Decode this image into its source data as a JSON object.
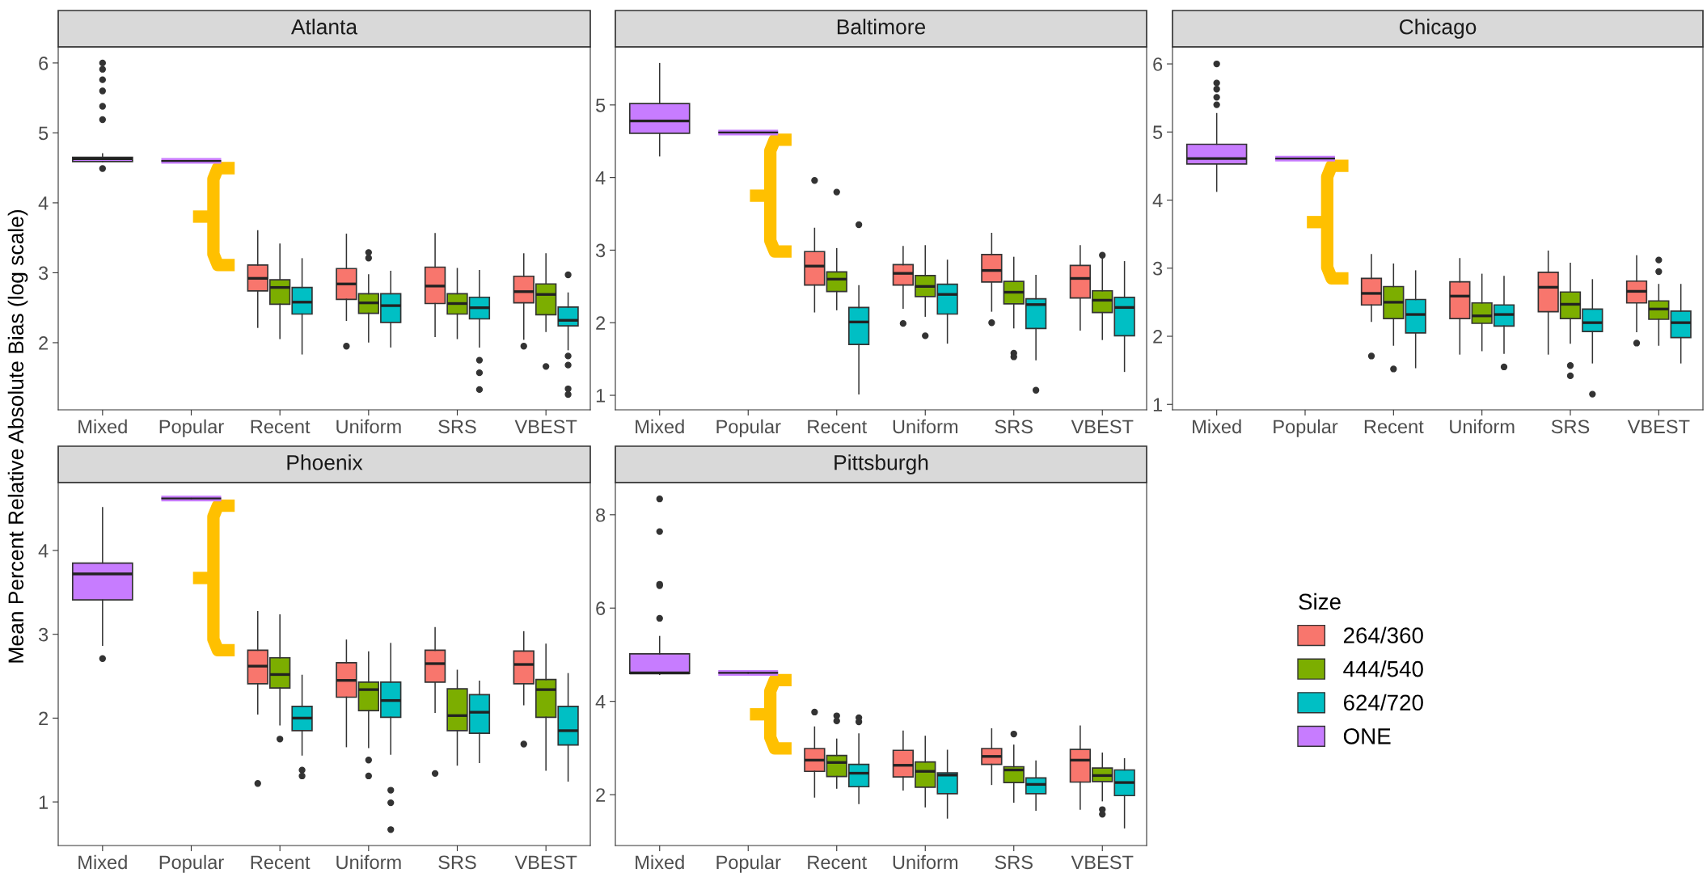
{
  "chart_data": [
    {
      "type": "box",
      "title": "Atlanta",
      "ylabel": "Mean Percent Relative Absolute Bias (log scale)",
      "legend": "right",
      "legend_title": "Size",
      "categories": [
        "Mixed",
        "Popular",
        "Recent",
        "Uniform",
        "SRS",
        "VBEST"
      ],
      "ylim": [
        1.04,
        6.23
      ],
      "yticks": [
        2,
        3,
        4,
        5,
        6
      ],
      "series": [
        {
          "name": "264/360",
          "color": "#F8766D",
          "boxes": [
            null,
            null,
            {
              "low": 2.22,
              "q1": 2.74,
              "median": 2.92,
              "q3": 3.11,
              "high": 3.6
            },
            {
              "low": 2.32,
              "q1": 2.62,
              "median": 2.84,
              "q3": 3.06,
              "high": 3.55,
              "outliers": [
                1.95
              ]
            },
            {
              "low": 2.09,
              "q1": 2.56,
              "median": 2.81,
              "q3": 3.08,
              "high": 3.56
            },
            {
              "low": 2.05,
              "q1": 2.57,
              "median": 2.73,
              "q3": 2.95,
              "high": 3.27,
              "outliers": [
                1.95
              ]
            }
          ]
        },
        {
          "name": "444/540",
          "color": "#7CAE00",
          "boxes": [
            null,
            null,
            {
              "low": 2.06,
              "q1": 2.55,
              "median": 2.79,
              "q3": 2.9,
              "high": 3.41
            },
            {
              "low": 2.01,
              "q1": 2.42,
              "median": 2.57,
              "q3": 2.7,
              "high": 2.97,
              "outliers": [
                3.21,
                3.29
              ]
            },
            {
              "low": 2.06,
              "q1": 2.41,
              "median": 2.56,
              "q3": 2.7,
              "high": 3.06
            },
            {
              "low": 2.16,
              "q1": 2.4,
              "median": 2.69,
              "q3": 2.84,
              "high": 3.27,
              "outliers": [
                1.66
              ]
            }
          ]
        },
        {
          "name": "624/720",
          "color": "#00BFC4",
          "boxes": [
            null,
            null,
            {
              "low": 1.84,
              "q1": 2.41,
              "median": 2.58,
              "q3": 2.79,
              "high": 3.2
            },
            {
              "low": 1.94,
              "q1": 2.29,
              "median": 2.53,
              "q3": 2.7,
              "high": 3.02
            },
            {
              "low": 1.94,
              "q1": 2.34,
              "median": 2.5,
              "q3": 2.65,
              "high": 3.03,
              "outliers": [
                1.75,
                1.57,
                1.33
              ]
            },
            {
              "low": 1.9,
              "q1": 2.24,
              "median": 2.32,
              "q3": 2.51,
              "high": 2.71,
              "outliers": [
                2.97,
                1.81,
                1.68,
                1.34,
                1.26
              ]
            }
          ]
        },
        {
          "name": "ONE",
          "color": "#C77CFF",
          "boxes": [
            {
              "low": 4.59,
              "q1": 4.59,
              "median": 4.63,
              "q3": 4.65,
              "high": 4.7,
              "outliers": [
                6.0,
                5.91,
                5.76,
                5.6,
                5.38,
                5.19,
                4.49
              ]
            },
            {
              "low": 4.6,
              "q1": 4.6,
              "median": 4.6,
              "q3": 4.6,
              "high": 4.6
            },
            null,
            null,
            null,
            null
          ]
        }
      ]
    },
    {
      "type": "box",
      "title": "Baltimore",
      "categories": [
        "Mixed",
        "Popular",
        "Recent",
        "Uniform",
        "SRS",
        "VBEST"
      ],
      "ylim": [
        0.8,
        5.8
      ],
      "yticks": [
        1,
        2,
        3,
        4,
        5
      ],
      "series": [
        {
          "color": "#F8766D",
          "boxes": [
            null,
            null,
            {
              "low": 2.15,
              "q1": 2.52,
              "median": 2.78,
              "q3": 2.98,
              "high": 3.3,
              "outliers": [
                3.96
              ]
            },
            {
              "low": 2.2,
              "q1": 2.52,
              "median": 2.68,
              "q3": 2.8,
              "high": 3.05,
              "outliers": [
                1.99
              ]
            },
            {
              "low": 2.16,
              "q1": 2.56,
              "median": 2.72,
              "q3": 2.94,
              "high": 3.23,
              "outliers": [
                2.0
              ]
            },
            {
              "low": 1.9,
              "q1": 2.34,
              "median": 2.61,
              "q3": 2.79,
              "high": 3.06
            }
          ]
        },
        {
          "color": "#7CAE00",
          "boxes": [
            null,
            null,
            {
              "low": 2.18,
              "q1": 2.43,
              "median": 2.6,
              "q3": 2.7,
              "high": 3.02,
              "outliers": [
                3.8
              ]
            },
            {
              "low": 2.09,
              "q1": 2.36,
              "median": 2.5,
              "q3": 2.65,
              "high": 3.06,
              "outliers": [
                1.82
              ]
            },
            {
              "low": 1.93,
              "q1": 2.26,
              "median": 2.42,
              "q3": 2.57,
              "high": 2.9,
              "outliers": [
                1.58,
                1.53
              ]
            },
            {
              "low": 1.77,
              "q1": 2.14,
              "median": 2.31,
              "q3": 2.44,
              "high": 2.9,
              "outliers": [
                2.93
              ]
            }
          ]
        },
        {
          "color": "#00BFC4",
          "boxes": [
            null,
            null,
            {
              "low": 1.02,
              "q1": 1.7,
              "median": 2.01,
              "q3": 2.21,
              "high": 2.51,
              "outliers": [
                3.35
              ]
            },
            {
              "low": 1.72,
              "q1": 2.12,
              "median": 2.39,
              "q3": 2.53,
              "high": 2.86
            },
            {
              "low": 1.49,
              "q1": 1.92,
              "median": 2.25,
              "q3": 2.33,
              "high": 2.65,
              "outliers": [
                1.07
              ]
            },
            {
              "low": 1.33,
              "q1": 1.82,
              "median": 2.21,
              "q3": 2.35,
              "high": 2.84
            }
          ]
        },
        {
          "color": "#C77CFF",
          "boxes": [
            {
              "low": 4.3,
              "q1": 4.61,
              "median": 4.78,
              "q3": 5.02,
              "high": 5.57
            },
            {
              "low": 4.62,
              "q1": 4.62,
              "median": 4.62,
              "q3": 4.62,
              "high": 4.62
            },
            null,
            null,
            null,
            null
          ]
        }
      ]
    },
    {
      "type": "box",
      "title": "Chicago",
      "categories": [
        "Mixed",
        "Popular",
        "Recent",
        "Uniform",
        "SRS",
        "VBEST"
      ],
      "ylim": [
        0.92,
        6.25
      ],
      "yticks": [
        1,
        2,
        3,
        4,
        5,
        6
      ],
      "series": [
        {
          "color": "#F8766D",
          "boxes": [
            null,
            null,
            {
              "low": 2.22,
              "q1": 2.46,
              "median": 2.63,
              "q3": 2.85,
              "high": 3.2,
              "outliers": [
                1.71
              ]
            },
            {
              "low": 1.74,
              "q1": 2.26,
              "median": 2.59,
              "q3": 2.8,
              "high": 3.14
            },
            {
              "low": 1.74,
              "q1": 2.36,
              "median": 2.72,
              "q3": 2.94,
              "high": 3.25
            },
            {
              "low": 2.07,
              "q1": 2.49,
              "median": 2.66,
              "q3": 2.81,
              "high": 3.18,
              "outliers": [
                1.9
              ]
            }
          ]
        },
        {
          "color": "#7CAE00",
          "boxes": [
            null,
            null,
            {
              "low": 1.87,
              "q1": 2.26,
              "median": 2.5,
              "q3": 2.73,
              "high": 3.06,
              "outliers": [
                1.52
              ]
            },
            {
              "low": 1.79,
              "q1": 2.19,
              "median": 2.3,
              "q3": 2.49,
              "high": 2.91
            },
            {
              "low": 1.9,
              "q1": 2.26,
              "median": 2.47,
              "q3": 2.65,
              "high": 3.07,
              "outliers": [
                1.57,
                1.42
              ]
            },
            {
              "low": 1.87,
              "q1": 2.25,
              "median": 2.4,
              "q3": 2.52,
              "high": 2.76,
              "outliers": [
                3.12,
                2.95
              ]
            }
          ]
        },
        {
          "color": "#00BFC4",
          "boxes": [
            null,
            null,
            {
              "low": 1.54,
              "q1": 2.05,
              "median": 2.32,
              "q3": 2.54,
              "high": 2.96
            },
            {
              "low": 1.75,
              "q1": 2.15,
              "median": 2.32,
              "q3": 2.46,
              "high": 2.88,
              "outliers": [
                1.55
              ]
            },
            {
              "low": 1.61,
              "q1": 2.07,
              "median": 2.2,
              "q3": 2.4,
              "high": 2.83,
              "outliers": [
                1.15
              ]
            },
            {
              "low": 1.61,
              "q1": 1.98,
              "median": 2.2,
              "q3": 2.37,
              "high": 2.76
            }
          ]
        },
        {
          "color": "#C77CFF",
          "boxes": [
            {
              "low": 4.13,
              "q1": 4.53,
              "median": 4.61,
              "q3": 4.82,
              "high": 5.27,
              "outliers": [
                6.0,
                5.72,
                5.63,
                5.51,
                5.4
              ]
            },
            {
              "low": 4.61,
              "q1": 4.61,
              "median": 4.61,
              "q3": 4.61,
              "high": 4.61
            },
            null,
            null,
            null,
            null
          ]
        }
      ]
    },
    {
      "type": "box",
      "title": "Phoenix",
      "categories": [
        "Mixed",
        "Popular",
        "Recent",
        "Uniform",
        "SRS",
        "VBEST"
      ],
      "ylim": [
        0.48,
        4.81
      ],
      "yticks": [
        1,
        2,
        3,
        4
      ],
      "series": [
        {
          "color": "#F8766D",
          "boxes": [
            null,
            null,
            {
              "low": 2.05,
              "q1": 2.41,
              "median": 2.62,
              "q3": 2.81,
              "high": 3.27,
              "outliers": [
                1.22
              ]
            },
            {
              "low": 1.66,
              "q1": 2.25,
              "median": 2.45,
              "q3": 2.66,
              "high": 2.93
            },
            {
              "low": 2.07,
              "q1": 2.43,
              "median": 2.65,
              "q3": 2.81,
              "high": 3.08,
              "outliers": [
                1.34
              ]
            },
            {
              "low": 2.16,
              "q1": 2.41,
              "median": 2.64,
              "q3": 2.8,
              "high": 3.03,
              "outliers": [
                1.69
              ]
            }
          ]
        },
        {
          "color": "#7CAE00",
          "boxes": [
            null,
            null,
            {
              "low": 1.92,
              "q1": 2.36,
              "median": 2.52,
              "q3": 2.72,
              "high": 3.23,
              "outliers": [
                1.75
              ]
            },
            {
              "low": 1.65,
              "q1": 2.09,
              "median": 2.34,
              "q3": 2.43,
              "high": 2.79,
              "outliers": [
                1.5,
                1.31
              ]
            },
            {
              "low": 1.44,
              "q1": 1.85,
              "median": 2.03,
              "q3": 2.35,
              "high": 2.57
            },
            {
              "low": 1.38,
              "q1": 2.01,
              "median": 2.34,
              "q3": 2.46,
              "high": 2.88
            }
          ]
        },
        {
          "color": "#00BFC4",
          "boxes": [
            null,
            null,
            {
              "low": 1.56,
              "q1": 1.85,
              "median": 2.0,
              "q3": 2.14,
              "high": 2.51,
              "outliers": [
                1.38,
                1.31
              ]
            },
            {
              "low": 1.57,
              "q1": 2.01,
              "median": 2.21,
              "q3": 2.43,
              "high": 2.89,
              "outliers": [
                1.14,
                0.99,
                0.67
              ]
            },
            {
              "low": 1.47,
              "q1": 1.82,
              "median": 2.07,
              "q3": 2.28,
              "high": 2.44
            },
            {
              "low": 1.25,
              "q1": 1.68,
              "median": 1.85,
              "q3": 2.14,
              "high": 2.53
            }
          ]
        },
        {
          "color": "#C77CFF",
          "boxes": [
            {
              "low": 2.87,
              "q1": 3.41,
              "median": 3.72,
              "q3": 3.85,
              "high": 4.51,
              "outliers": [
                2.71
              ]
            },
            {
              "low": 4.62,
              "q1": 4.62,
              "median": 4.62,
              "q3": 4.62,
              "high": 4.62
            },
            null,
            null,
            null,
            null
          ]
        }
      ]
    },
    {
      "type": "box",
      "title": "Pittsburgh",
      "categories": [
        "Mixed",
        "Popular",
        "Recent",
        "Uniform",
        "SRS",
        "VBEST"
      ],
      "ylim": [
        0.91,
        8.69
      ],
      "yticks": [
        2,
        4,
        6,
        8
      ],
      "series": [
        {
          "color": "#F8766D",
          "boxes": [
            null,
            null,
            {
              "low": 1.95,
              "q1": 2.5,
              "median": 2.74,
              "q3": 2.99,
              "high": 3.45,
              "outliers": [
                3.77
              ]
            },
            {
              "low": 2.1,
              "q1": 2.38,
              "median": 2.63,
              "q3": 2.95,
              "high": 3.36
            },
            {
              "low": 2.22,
              "q1": 2.65,
              "median": 2.82,
              "q3": 2.99,
              "high": 3.41
            },
            {
              "low": 1.69,
              "q1": 2.27,
              "median": 2.74,
              "q3": 2.97,
              "high": 3.47
            }
          ]
        },
        {
          "color": "#7CAE00",
          "boxes": [
            null,
            null,
            {
              "low": 2.14,
              "q1": 2.39,
              "median": 2.69,
              "q3": 2.84,
              "high": 3.19,
              "outliers": [
                3.69,
                3.58
              ]
            },
            {
              "low": 1.74,
              "q1": 2.16,
              "median": 2.5,
              "q3": 2.7,
              "high": 3.25
            },
            {
              "low": 1.84,
              "q1": 2.26,
              "median": 2.53,
              "q3": 2.6,
              "high": 3.06,
              "outliers": [
                3.3
              ]
            },
            {
              "low": 1.87,
              "q1": 2.28,
              "median": 2.41,
              "q3": 2.57,
              "high": 2.89,
              "outliers": [
                1.68,
                1.58
              ]
            }
          ]
        },
        {
          "color": "#00BFC4",
          "boxes": [
            null,
            null,
            {
              "low": 1.81,
              "q1": 2.17,
              "median": 2.46,
              "q3": 2.65,
              "high": 3.3,
              "outliers": [
                3.65,
                3.56
              ]
            },
            {
              "low": 1.5,
              "q1": 2.02,
              "median": 2.42,
              "q3": 2.47,
              "high": 2.95
            },
            {
              "low": 1.67,
              "q1": 2.02,
              "median": 2.22,
              "q3": 2.36,
              "high": 2.72
            },
            {
              "low": 1.29,
              "q1": 1.98,
              "median": 2.26,
              "q3": 2.53,
              "high": 2.77
            }
          ]
        },
        {
          "color": "#C77CFF",
          "boxes": [
            {
              "low": 4.58,
              "q1": 4.6,
              "median": 4.61,
              "q3": 5.02,
              "high": 5.39,
              "outliers": [
                8.34,
                7.64,
                6.51,
                6.48,
                5.78
              ]
            },
            {
              "low": 4.61,
              "q1": 4.61,
              "median": 4.61,
              "q3": 4.61,
              "high": 4.61
            },
            null,
            null,
            null,
            null
          ]
        }
      ]
    }
  ]
}
